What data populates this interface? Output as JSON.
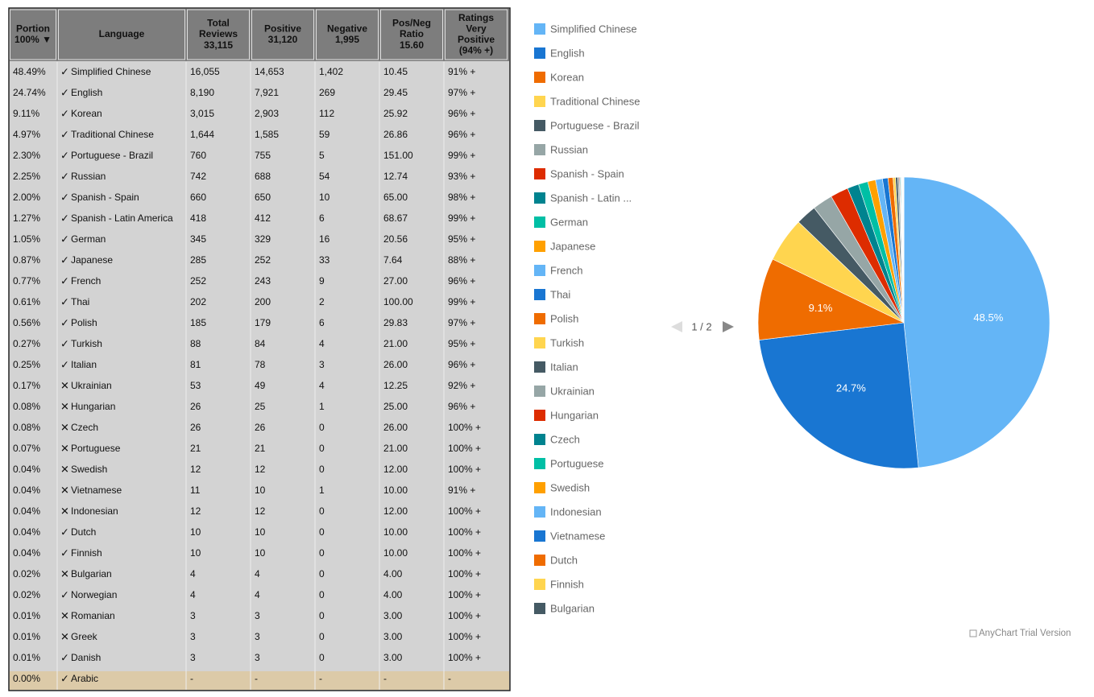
{
  "table": {
    "headers": [
      [
        "Portion",
        "100% ▼"
      ],
      [
        "Language"
      ],
      [
        "Total",
        "Reviews",
        "33,115"
      ],
      [
        "Positive",
        "31,120"
      ],
      [
        "Negative",
        "1,995"
      ],
      [
        "Pos/Neg",
        "Ratio",
        "15.60"
      ],
      [
        "Ratings",
        "Very",
        "Positive",
        "(94% +)"
      ]
    ],
    "rows": [
      [
        "48.49%",
        "✓",
        "Simplified Chinese",
        "16,055",
        "14,653",
        "1,402",
        "10.45",
        "91% +"
      ],
      [
        "24.74%",
        "✓",
        "English",
        "8,190",
        "7,921",
        "269",
        "29.45",
        "97% +"
      ],
      [
        "9.11%",
        "✓",
        "Korean",
        "3,015",
        "2,903",
        "112",
        "25.92",
        "96% +"
      ],
      [
        "4.97%",
        "✓",
        "Traditional Chinese",
        "1,644",
        "1,585",
        "59",
        "26.86",
        "96% +"
      ],
      [
        "2.30%",
        "✓",
        "Portuguese - Brazil",
        "760",
        "755",
        "5",
        "151.00",
        "99% +"
      ],
      [
        "2.25%",
        "✓",
        "Russian",
        "742",
        "688",
        "54",
        "12.74",
        "93% +"
      ],
      [
        "2.00%",
        "✓",
        "Spanish - Spain",
        "660",
        "650",
        "10",
        "65.00",
        "98% +"
      ],
      [
        "1.27%",
        "✓",
        "Spanish - Latin America",
        "418",
        "412",
        "6",
        "68.67",
        "99% +"
      ],
      [
        "1.05%",
        "✓",
        "German",
        "345",
        "329",
        "16",
        "20.56",
        "95% +"
      ],
      [
        "0.87%",
        "✓",
        "Japanese",
        "285",
        "252",
        "33",
        "7.64",
        "88% +"
      ],
      [
        "0.77%",
        "✓",
        "French",
        "252",
        "243",
        "9",
        "27.00",
        "96% +"
      ],
      [
        "0.61%",
        "✓",
        "Thai",
        "202",
        "200",
        "2",
        "100.00",
        "99% +"
      ],
      [
        "0.56%",
        "✓",
        "Polish",
        "185",
        "179",
        "6",
        "29.83",
        "97% +"
      ],
      [
        "0.27%",
        "✓",
        "Turkish",
        "88",
        "84",
        "4",
        "21.00",
        "95% +"
      ],
      [
        "0.25%",
        "✓",
        "Italian",
        "81",
        "78",
        "3",
        "26.00",
        "96% +"
      ],
      [
        "0.17%",
        "✕",
        "Ukrainian",
        "53",
        "49",
        "4",
        "12.25",
        "92% +"
      ],
      [
        "0.08%",
        "✕",
        "Hungarian",
        "26",
        "25",
        "1",
        "25.00",
        "96% +"
      ],
      [
        "0.08%",
        "✕",
        "Czech",
        "26",
        "26",
        "0",
        "26.00",
        "100% +"
      ],
      [
        "0.07%",
        "✕",
        "Portuguese",
        "21",
        "21",
        "0",
        "21.00",
        "100% +"
      ],
      [
        "0.04%",
        "✕",
        "Swedish",
        "12",
        "12",
        "0",
        "12.00",
        "100% +"
      ],
      [
        "0.04%",
        "✕",
        "Vietnamese",
        "11",
        "10",
        "1",
        "10.00",
        "91% +"
      ],
      [
        "0.04%",
        "✕",
        "Indonesian",
        "12",
        "12",
        "0",
        "12.00",
        "100% +"
      ],
      [
        "0.04%",
        "✓",
        "Dutch",
        "10",
        "10",
        "0",
        "10.00",
        "100% +"
      ],
      [
        "0.04%",
        "✓",
        "Finnish",
        "10",
        "10",
        "0",
        "10.00",
        "100% +"
      ],
      [
        "0.02%",
        "✕",
        "Bulgarian",
        "4",
        "4",
        "0",
        "4.00",
        "100% +"
      ],
      [
        "0.02%",
        "✓",
        "Norwegian",
        "4",
        "4",
        "0",
        "4.00",
        "100% +"
      ],
      [
        "0.01%",
        "✕",
        "Romanian",
        "3",
        "3",
        "0",
        "3.00",
        "100% +"
      ],
      [
        "0.01%",
        "✕",
        "Greek",
        "3",
        "3",
        "0",
        "3.00",
        "100% +"
      ],
      [
        "0.01%",
        "✓",
        "Danish",
        "3",
        "3",
        "0",
        "3.00",
        "100% +"
      ],
      [
        "0.00%",
        "✓",
        "Arabic",
        "-",
        "-",
        "-",
        "-",
        "-"
      ]
    ]
  },
  "chart_data": {
    "type": "pie",
    "categories": [
      "Simplified Chinese",
      "English",
      "Korean",
      "Traditional Chinese",
      "Portuguese - Brazil",
      "Russian",
      "Spanish - Spain",
      "Spanish - Latin ...",
      "German",
      "Japanese",
      "French",
      "Thai",
      "Polish",
      "Turkish",
      "Italian",
      "Ukrainian",
      "Hungarian",
      "Czech",
      "Portuguese",
      "Swedish",
      "Indonesian",
      "Vietnamese",
      "Dutch",
      "Finnish",
      "Bulgarian",
      null,
      null,
      null,
      null,
      null
    ],
    "values": [
      48.49,
      24.74,
      9.11,
      4.97,
      2.3,
      2.25,
      2.0,
      1.27,
      1.05,
      0.87,
      0.77,
      0.61,
      0.56,
      0.27,
      0.25,
      0.17,
      0.08,
      0.08,
      0.07,
      0.04,
      0.04,
      0.04,
      0.04,
      0.04,
      0.02,
      0.02,
      0.01,
      0.01,
      0.01,
      0.0
    ],
    "value_labels": [
      "48.5%",
      "24.7%",
      "9.1%",
      null,
      null,
      null,
      null,
      null,
      null,
      null,
      null,
      null,
      null,
      null,
      null,
      null,
      null,
      null,
      null,
      null,
      null,
      null,
      null,
      null,
      null,
      null,
      null,
      null,
      null,
      null
    ],
    "colors": [
      "#64b5f6",
      "#1976d2",
      "#ef6c00",
      "#ffd54f",
      "#455a64",
      "#96a6a6",
      "#dd2c00",
      "#00838f",
      "#00bfa5",
      "#ffa000"
    ],
    "legend_page": "1 / 2",
    "watermark": "AnyChart Trial Version"
  }
}
